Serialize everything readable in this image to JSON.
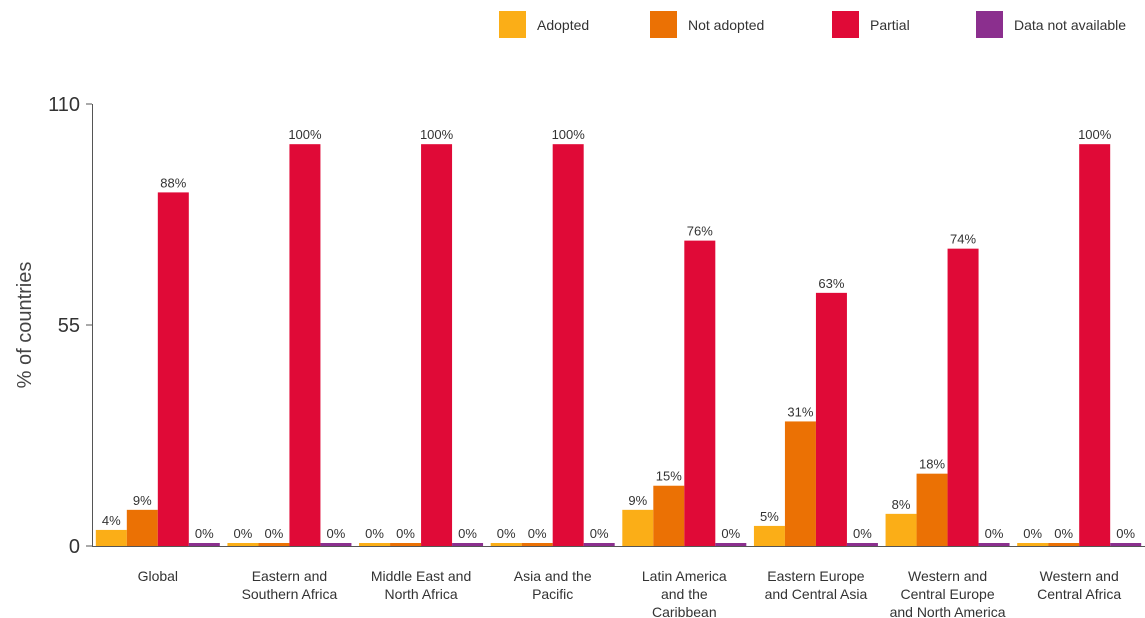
{
  "chart_data": {
    "type": "bar",
    "title": "",
    "xlabel": "",
    "ylabel": "% of countries",
    "ylim": [
      0,
      110
    ],
    "yticks": [
      0,
      55,
      110
    ],
    "grid": false,
    "legend_placement": "top-right",
    "categories": [
      [
        "Global"
      ],
      [
        "Eastern and",
        "Southern Africa"
      ],
      [
        "Middle East and",
        "North Africa"
      ],
      [
        "Asia and the",
        "Pacific"
      ],
      [
        "Latin America",
        "and the",
        "Caribbean"
      ],
      [
        "Eastern Europe",
        "and Central Asia"
      ],
      [
        "Western and",
        "Central Europe",
        "and North America"
      ],
      [
        "Western and",
        "Central Africa"
      ]
    ],
    "series": [
      {
        "name": "Adopted",
        "color": "#FBAE17",
        "values": [
          4,
          0,
          0,
          0,
          9,
          5,
          8,
          0
        ]
      },
      {
        "name": "Not adopted",
        "color": "#EB7104",
        "values": [
          9,
          0,
          0,
          0,
          15,
          31,
          18,
          0
        ]
      },
      {
        "name": "Partial",
        "color": "#E00A37",
        "values": [
          88,
          100,
          100,
          100,
          76,
          63,
          74,
          100
        ]
      },
      {
        "name": "Data not available",
        "color": "#8B2F8E",
        "values": [
          0,
          0,
          0,
          0,
          0,
          0,
          0,
          0
        ]
      }
    ],
    "value_suffix": "%"
  }
}
